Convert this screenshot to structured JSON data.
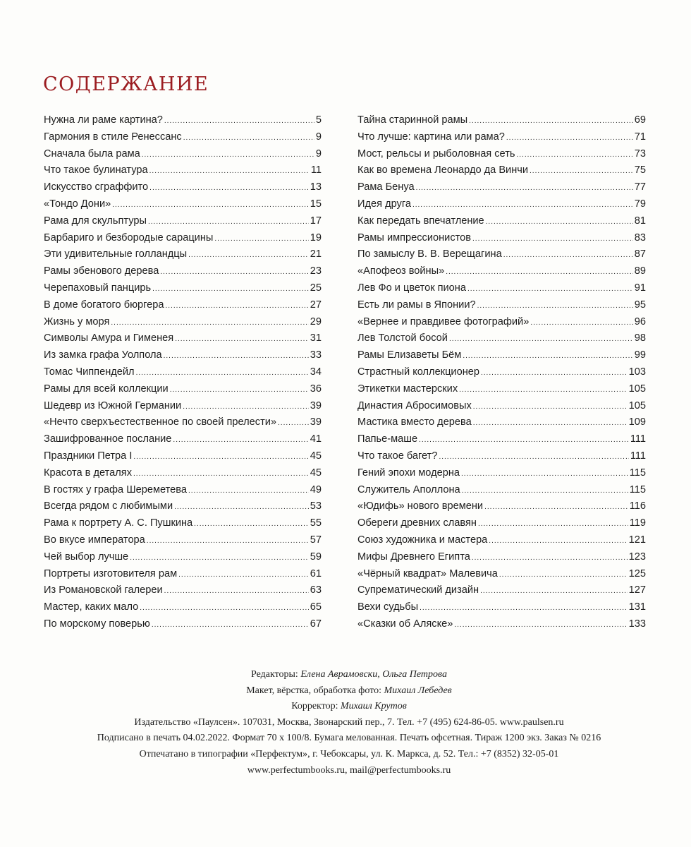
{
  "title": "СОДЕРЖАНИЕ",
  "accent_color": "#9b1c20",
  "left": [
    {
      "t": "Нужна ли раме картина?",
      "p": "5"
    },
    {
      "t": "Гармония в стиле Ренессанс",
      "p": "9"
    },
    {
      "t": "Сначала была рама",
      "p": "9"
    },
    {
      "t": "Что такое булинатура",
      "p": "11"
    },
    {
      "t": "Искусство сграффито",
      "p": "13"
    },
    {
      "t": "«Тондо Дони»",
      "p": "15"
    },
    {
      "t": "Рама для скульптуры",
      "p": "17"
    },
    {
      "t": "Барбариго и безбородые сарацины",
      "p": "19"
    },
    {
      "t": "Эти удивительные голландцы",
      "p": "21"
    },
    {
      "t": "Рамы эбенового дерева",
      "p": "23"
    },
    {
      "t": "Черепаховый панцирь",
      "p": "25"
    },
    {
      "t": "В доме богатого бюргера",
      "p": "27"
    },
    {
      "t": "Жизнь у моря",
      "p": "29"
    },
    {
      "t": "Символы Амура и Гименея",
      "p": "31"
    },
    {
      "t": "Из замка графа Уолпола",
      "p": "33"
    },
    {
      "t": "Томас Чиппендейл",
      "p": "34"
    },
    {
      "t": "Рамы для всей коллекции",
      "p": "36"
    },
    {
      "t": "Шедевр из Южной Германии",
      "p": "39"
    },
    {
      "t": "«Нечто сверхъестественное по своей прелести»",
      "p": "39"
    },
    {
      "t": "Зашифрованное послание",
      "p": "41"
    },
    {
      "t": "Праздники Петра I",
      "p": "45"
    },
    {
      "t": "Красота в деталях",
      "p": "45"
    },
    {
      "t": "В гостях у графа Шереметева",
      "p": "49"
    },
    {
      "t": "Всегда рядом с любимыми",
      "p": "53"
    },
    {
      "t": "Рама к портрету А. С. Пушкина",
      "p": "55"
    },
    {
      "t": "Во вкусе императора",
      "p": "57"
    },
    {
      "t": "Чей выбор лучше",
      "p": "59"
    },
    {
      "t": "Портреты изготовителя рам",
      "p": "61"
    },
    {
      "t": "Из Романовской галереи",
      "p": "63"
    },
    {
      "t": "Мастер, каких мало",
      "p": "65"
    },
    {
      "t": "По морскому поверью",
      "p": "67"
    }
  ],
  "right": [
    {
      "t": "Тайна старинной рамы",
      "p": "69"
    },
    {
      "t": "Что лучше: картина или рама?",
      "p": "71"
    },
    {
      "t": "Мост, рельсы и рыболовная сеть",
      "p": "73"
    },
    {
      "t": "Как во времена Леонардо да Винчи",
      "p": "75"
    },
    {
      "t": "Рама Бенуа",
      "p": "77"
    },
    {
      "t": "Идея друга",
      "p": "79"
    },
    {
      "t": "Как передать впечатление",
      "p": "81"
    },
    {
      "t": "Рамы импрессионистов",
      "p": "83"
    },
    {
      "t": "По замыслу В. В. Верещагина",
      "p": "87"
    },
    {
      "t": "«Апофеоз войны»",
      "p": "89"
    },
    {
      "t": "Лев Фо и цветок пиона",
      "p": "91"
    },
    {
      "t": "Есть ли рамы в Японии?",
      "p": "95"
    },
    {
      "t": "«Вернее и правдивее фотографий»",
      "p": "96"
    },
    {
      "t": "Лев Толстой босой",
      "p": "98"
    },
    {
      "t": "Рамы Елизаветы Бём",
      "p": "99"
    },
    {
      "t": "Страстный коллекционер",
      "p": "103"
    },
    {
      "t": "Этикетки мастерских",
      "p": "105"
    },
    {
      "t": "Династия Абросимовых",
      "p": "105"
    },
    {
      "t": "Мастика вместо дерева",
      "p": "109"
    },
    {
      "t": "Папье-маше",
      "p": "111"
    },
    {
      "t": "Что такое багет?",
      "p": "111"
    },
    {
      "t": "Гений эпохи модерна",
      "p": "115"
    },
    {
      "t": "Служитель Аполлона",
      "p": "115"
    },
    {
      "t": "«Юдифь» нового времени",
      "p": "116"
    },
    {
      "t": "Обереги древних славян",
      "p": "119"
    },
    {
      "t": "Союз художника и мастера",
      "p": "121"
    },
    {
      "t": "Мифы Древнего Египта",
      "p": "123"
    },
    {
      "t": "«Чёрный квадрат» Малевича",
      "p": "125"
    },
    {
      "t": "Супрематический дизайн",
      "p": "127"
    },
    {
      "t": "Вехи судьбы",
      "p": "131"
    },
    {
      "t": "«Сказки об Аляске»",
      "p": "133"
    }
  ],
  "footer": {
    "editors_label": "Редакторы: ",
    "editors": "Елена Аврамовски, Ольга Петрова",
    "layout_label": "Макет, вёрстка, обработка фото: ",
    "layout": "Михаил Лебедев",
    "corrector_label": "Корректор: ",
    "corrector": "Михаил Крутов",
    "publisher": "Издательство «Паулсен». 107031, Москва, Звонарский пер., 7. Тел. +7 (495) 624-86-05. www.paulsen.ru",
    "print_info": "Подписано в печать 04.02.2022. Формат 70 х 100/8. Бумага мелованная. Печать офсетная. Тираж 1200 экз. Заказ № 0216",
    "printer": "Отпечатано в типографии «Перфектум», г. Чебоксары, ул. К. Маркса, д. 52. Тел.: +7 (8352) 32-05-01",
    "web": "www.perfectumbooks.ru, mail@perfectumbooks.ru"
  }
}
